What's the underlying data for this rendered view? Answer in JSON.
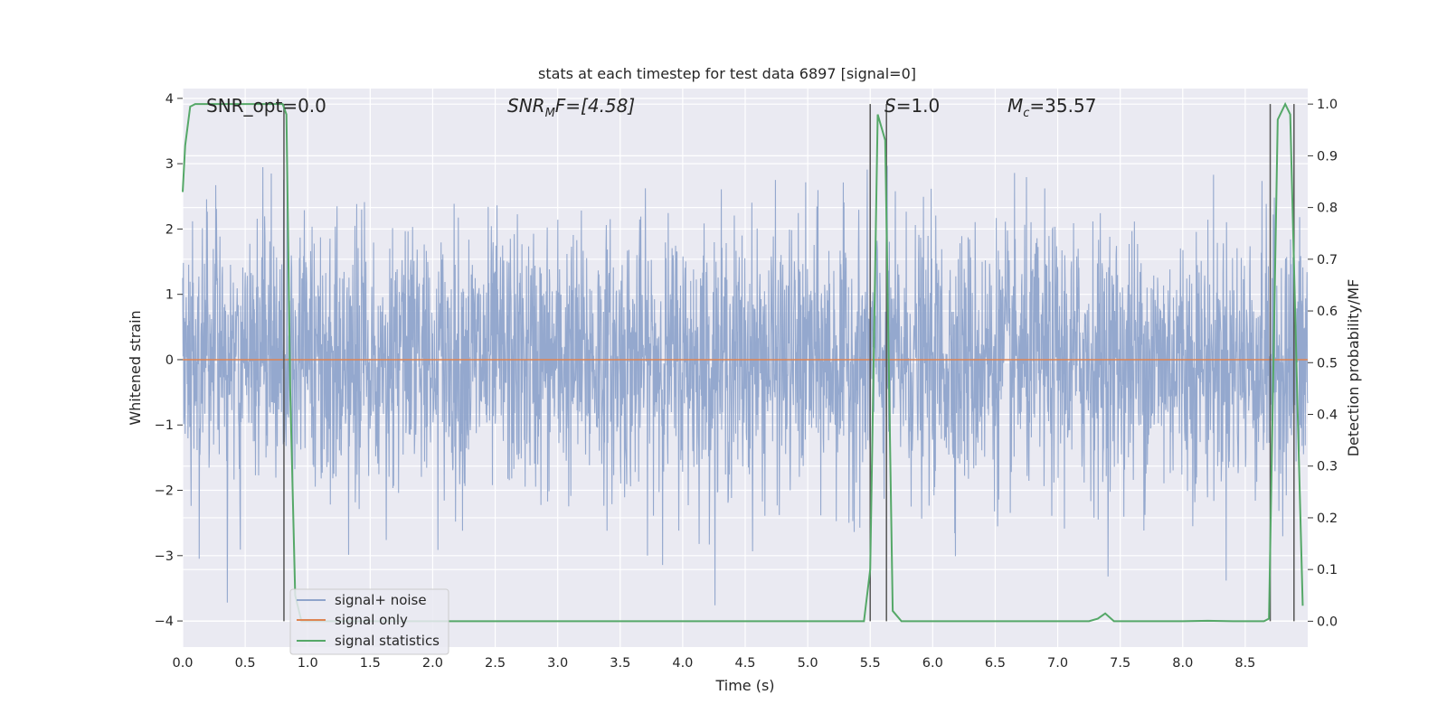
{
  "chart_data": {
    "type": "line",
    "title": "stats at each timestep for test data 6897 [signal=0]",
    "xlabel": "Time (s)",
    "ylabel": "Whitened strain",
    "y2label": "Detection probability/MF",
    "xlim": [
      0.0,
      9.0
    ],
    "ylim": [
      -4.4,
      4.15
    ],
    "y2lim": [
      -0.05,
      1.03
    ],
    "x_ticks": [
      "0.0",
      "0.5",
      "1.0",
      "1.5",
      "2.0",
      "2.5",
      "3.0",
      "3.5",
      "4.0",
      "4.5",
      "5.0",
      "5.5",
      "6.0",
      "6.5",
      "7.0",
      "7.5",
      "8.0",
      "8.5"
    ],
    "y_ticks": [
      "4",
      "3",
      "2",
      "1",
      "0",
      "−1",
      "−2",
      "−3",
      "−4"
    ],
    "y2_ticks": [
      "1.0",
      "0.9",
      "0.8",
      "0.7",
      "0.6",
      "0.5",
      "0.4",
      "0.3",
      "0.2",
      "0.1",
      "0.0"
    ],
    "grid": true,
    "legend_position": "lower-left",
    "colors": {
      "background": "#eaeaf2",
      "grid": "#ffffff",
      "noise": "#8fa4cb",
      "signal": "#dd8452",
      "stats": "#55a868",
      "vlines": "#555555"
    },
    "annotations": {
      "snr_opt": "SNR_opt=0.0",
      "snr_mf_prefix": "SNR",
      "snr_mf_sub": "M",
      "snr_mf_suffix": "F=[4.58]",
      "s_prefix": "S",
      "s_suffix": "=1.0",
      "mc_prefix": "M",
      "mc_sub": "c",
      "mc_suffix": "=35.57"
    },
    "series": [
      {
        "name": "signal+ noise",
        "kind": "noise",
        "note_amplitude_std": 1.0
      },
      {
        "name": "signal only",
        "values_constant": 0.0
      },
      {
        "name": "signal statistics",
        "axis": "right",
        "x": [
          0.0,
          0.02,
          0.06,
          0.1,
          0.2,
          0.4,
          0.6,
          0.75,
          0.8,
          0.83,
          0.86,
          0.9,
          0.95,
          1.0,
          2.0,
          3.0,
          4.0,
          5.0,
          5.45,
          5.5,
          5.56,
          5.62,
          5.68,
          5.75,
          6.0,
          7.0,
          7.25,
          7.32,
          7.38,
          7.45,
          8.0,
          8.2,
          8.4,
          8.65,
          8.69,
          8.76,
          8.82,
          8.86,
          8.92,
          8.96
        ],
        "values": [
          0.83,
          0.92,
          0.995,
          1.0,
          1.0,
          1.0,
          1.0,
          1.0,
          1.0,
          0.98,
          0.45,
          0.05,
          0.0,
          0.0,
          0.0,
          0.0,
          0.0,
          0.0,
          0.0,
          0.1,
          0.98,
          0.93,
          0.02,
          0.0,
          0.0,
          0.0,
          0.0,
          0.005,
          0.015,
          0.0,
          0.0,
          0.001,
          0.0,
          0.0,
          0.005,
          0.97,
          1.0,
          0.98,
          0.4,
          0.03
        ]
      }
    ],
    "vlines_x": [
      0.81,
      5.5,
      5.63,
      8.7,
      8.89
    ]
  }
}
